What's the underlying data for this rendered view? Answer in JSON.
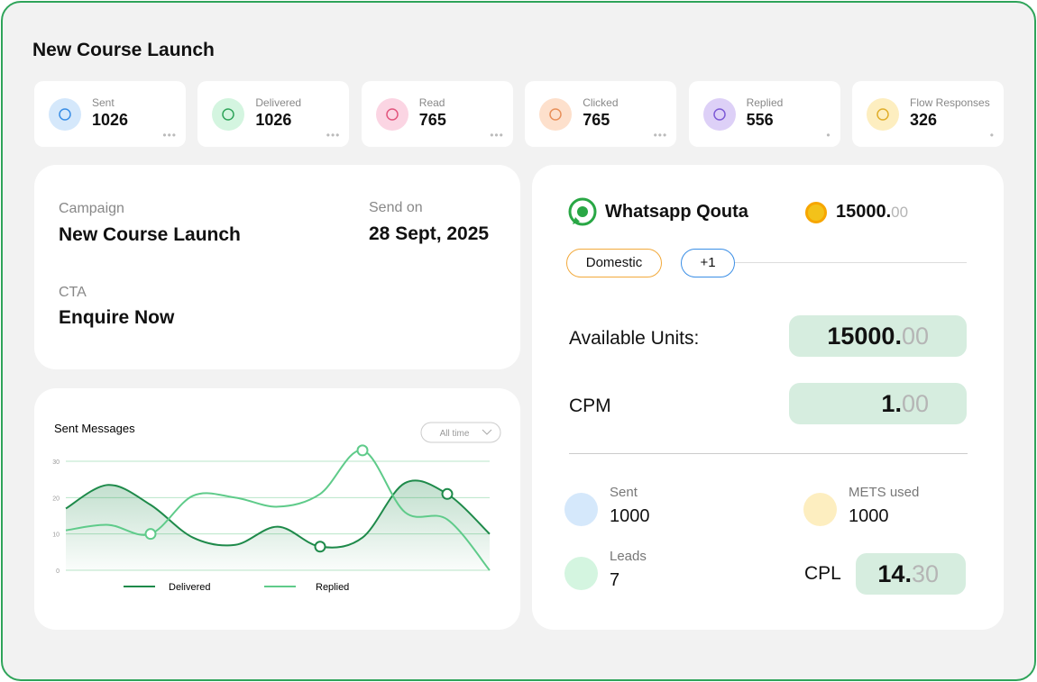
{
  "header": {
    "title": "New Course Launch"
  },
  "stats": [
    {
      "label": "Sent",
      "value": 1026
    },
    {
      "label": "Delivered",
      "value": 1026
    },
    {
      "label": "Read",
      "value": 765
    },
    {
      "label": "Clicked",
      "value": 765
    },
    {
      "label": "Replied",
      "value": 556
    },
    {
      "label": "Flow Responses",
      "value": 326
    }
  ],
  "campaign": {
    "campaign_label": "Campaign",
    "campaign_value": "New Course Launch",
    "send_label": "Send on",
    "send_value": "28 Sept, 2025",
    "cta_label": "CTA",
    "cta_value": "Enquire Now"
  },
  "sent_messages_chart": {
    "type": "line",
    "title": "Sent Messages",
    "filter": "All time",
    "categories": [
      null,
      null,
      null,
      null,
      null,
      null,
      null,
      null,
      null,
      null,
      null
    ],
    "ylim": [
      0,
      30
    ],
    "yticks": [
      0,
      10,
      20,
      30
    ],
    "grid": true,
    "series": [
      {
        "name": "Delivered",
        "color": "#1e8a4a",
        "values": [
          17,
          23.5,
          18,
          9,
          7,
          12,
          6.5,
          9,
          24,
          21,
          10
        ]
      },
      {
        "name": "Replied",
        "color": "#5fcb8a",
        "values": [
          11,
          12.5,
          10,
          20.5,
          20,
          17.5,
          21,
          33,
          16,
          14,
          0
        ]
      }
    ]
  },
  "quota": {
    "title": "Whatsapp Qouta",
    "balance_whole": "15000.",
    "balance_decimal": "00",
    "tags": [
      "Domestic",
      "+1"
    ],
    "available_label": "Available Units:",
    "available_whole": "15000.",
    "available_decimal": "00",
    "cpm_label": "CPM",
    "cpm_whole": "1.",
    "cpm_decimal": "00",
    "sent_label": "Sent",
    "sent_value": 1000,
    "mets_label": "METS used",
    "mets_value": 1000,
    "leads_label": "Leads",
    "leads_value": 7,
    "cpl_label": "CPL",
    "cpl_whole": "14.",
    "cpl_decimal": "30"
  }
}
